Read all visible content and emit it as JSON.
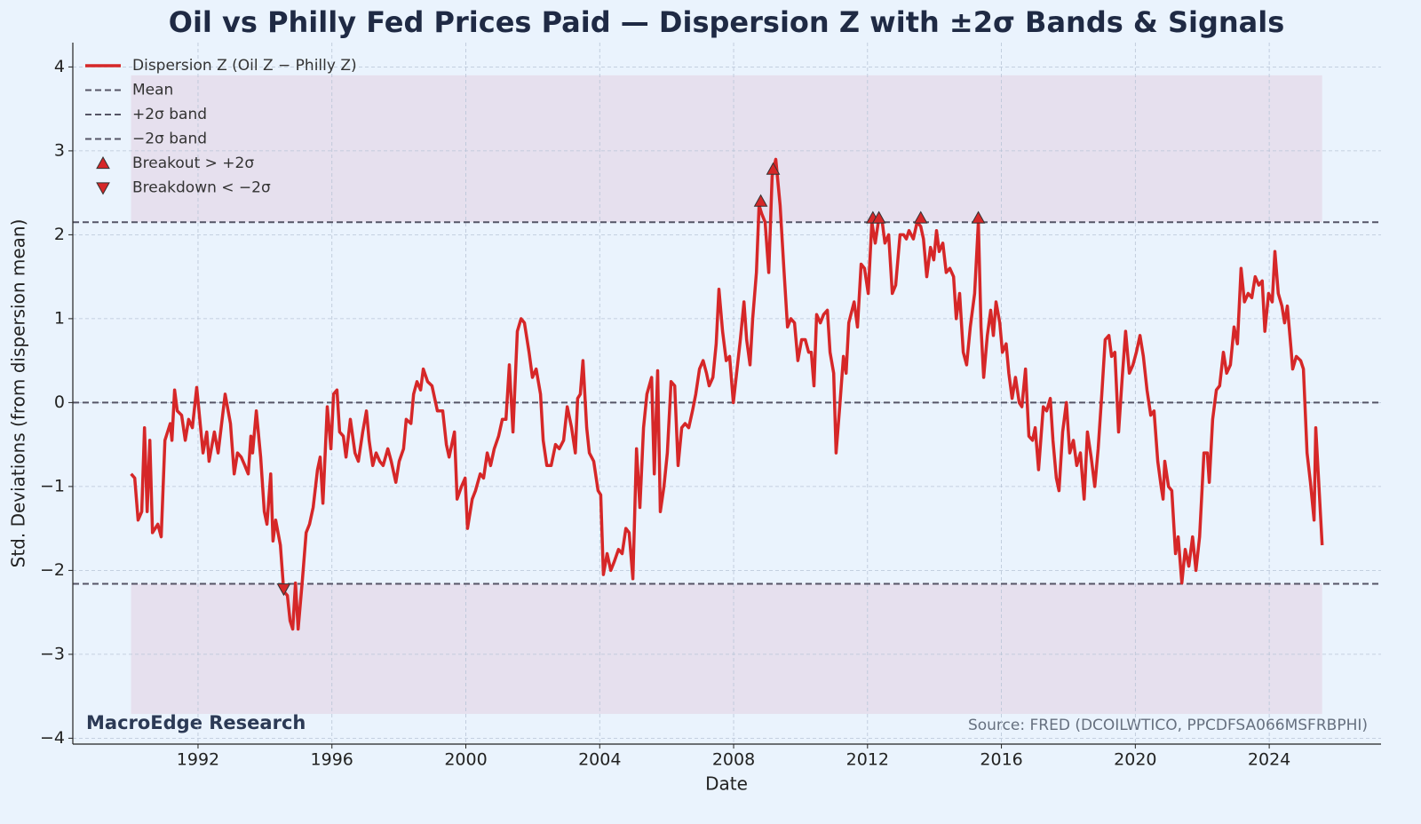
{
  "chart_data": {
    "type": "line",
    "title": "Oil vs Philly Fed Prices Paid — Dispersion Z with ±2σ Bands & Signals",
    "xlabel": "Date",
    "ylabel": "Std. Deviations (from dispersion mean)",
    "annotations": [
      "MacroEdge Research",
      "Source: FRED (DCOILWTICO, PPCDFSA066MSFRBPHI)"
    ],
    "xlim": [
      1988.26,
      2027.34
    ],
    "ylim": [
      -4.07,
      4.29
    ],
    "xticks": [
      1992,
      1996,
      2000,
      2004,
      2008,
      2012,
      2016,
      2020,
      2024
    ],
    "yticks": [
      {
        "value": -4,
        "label": "−4"
      },
      {
        "value": -3,
        "label": "−3"
      },
      {
        "value": -2,
        "label": "−2"
      },
      {
        "value": -1,
        "label": "−1"
      },
      0,
      1,
      2,
      3,
      4
    ],
    "grid": true,
    "legend": "upper left",
    "x": [
      1990.0,
      1990.11,
      1990.21,
      1990.32,
      1990.4,
      1990.48,
      1990.56,
      1990.64,
      1990.8,
      1990.9,
      1991.01,
      1991.17,
      1991.22,
      1991.3,
      1991.38,
      1991.51,
      1991.62,
      1991.72,
      1991.83,
      1991.96,
      1992.15,
      1992.26,
      1992.33,
      1992.49,
      1992.6,
      1992.81,
      1992.97,
      1993.08,
      1993.18,
      1993.29,
      1993.4,
      1993.5,
      1993.58,
      1993.63,
      1993.74,
      1993.87,
      1993.98,
      1994.06,
      1994.17,
      1994.24,
      1994.32,
      1994.46,
      1994.56,
      1994.67,
      1994.75,
      1994.83,
      1994.91,
      1994.99,
      1995.12,
      1995.23,
      1995.33,
      1995.44,
      1995.57,
      1995.65,
      1995.73,
      1995.86,
      1995.97,
      1996.05,
      1996.15,
      1996.23,
      1996.34,
      1996.42,
      1996.55,
      1996.69,
      1996.79,
      1996.92,
      1997.03,
      1997.11,
      1997.22,
      1997.32,
      1997.43,
      1997.53,
      1997.67,
      1997.77,
      1997.91,
      1998.01,
      1998.14,
      1998.22,
      1998.36,
      1998.44,
      1998.54,
      1998.65,
      1998.73,
      1998.86,
      1998.99,
      1999.15,
      1999.31,
      1999.42,
      1999.5,
      1999.66,
      1999.74,
      1999.87,
      1999.98,
      2000.05,
      2000.19,
      2000.29,
      2000.43,
      2000.53,
      2000.64,
      2000.74,
      2000.85,
      2000.98,
      2001.09,
      2001.2,
      2001.3,
      2001.41,
      2001.54,
      2001.65,
      2001.75,
      2001.89,
      2001.99,
      2002.1,
      2002.23,
      2002.31,
      2002.42,
      2002.55,
      2002.68,
      2002.79,
      2002.92,
      2003.03,
      2003.16,
      2003.27,
      2003.34,
      2003.42,
      2003.5,
      2003.61,
      2003.69,
      2003.82,
      2003.95,
      2004.03,
      2004.11,
      2004.22,
      2004.33,
      2004.43,
      2004.56,
      2004.67,
      2004.78,
      2004.88,
      2004.99,
      2005.1,
      2005.2,
      2005.31,
      2005.41,
      2005.55,
      2005.63,
      2005.73,
      2005.81,
      2005.92,
      2006.02,
      2006.13,
      2006.24,
      2006.34,
      2006.45,
      2006.55,
      2006.66,
      2006.77,
      2006.87,
      2006.98,
      2007.09,
      2007.19,
      2007.27,
      2007.38,
      2007.48,
      2007.56,
      2007.67,
      2007.78,
      2007.88,
      2007.99,
      2008.09,
      2008.2,
      2008.31,
      2008.39,
      2008.49,
      2008.57,
      2008.68,
      2008.76,
      2008.84,
      2008.94,
      2009.05,
      2009.15,
      2009.26,
      2009.39,
      2009.5,
      2009.61,
      2009.71,
      2009.82,
      2009.92,
      2010.03,
      2010.14,
      2010.24,
      2010.32,
      2010.4,
      2010.48,
      2010.59,
      2010.69,
      2010.8,
      2010.88,
      2010.99,
      2011.06,
      2011.17,
      2011.28,
      2011.36,
      2011.44,
      2011.6,
      2011.7,
      2011.81,
      2011.91,
      2012.02,
      2012.13,
      2012.23,
      2012.34,
      2012.44,
      2012.52,
      2012.63,
      2012.74,
      2012.84,
      2012.97,
      2013.08,
      2013.16,
      2013.24,
      2013.37,
      2013.48,
      2013.59,
      2013.67,
      2013.77,
      2013.88,
      2013.98,
      2014.06,
      2014.14,
      2014.25,
      2014.35,
      2014.46,
      2014.57,
      2014.65,
      2014.75,
      2014.86,
      2014.96,
      2015.07,
      2015.2,
      2015.31,
      2015.39,
      2015.47,
      2015.58,
      2015.68,
      2015.76,
      2015.84,
      2015.95,
      2016.03,
      2016.14,
      2016.22,
      2016.32,
      2016.42,
      2016.53,
      2016.61,
      2016.72,
      2016.82,
      2016.93,
      2017.01,
      2017.11,
      2017.25,
      2017.35,
      2017.46,
      2017.54,
      2017.64,
      2017.72,
      2017.83,
      2017.94,
      2018.04,
      2018.15,
      2018.25,
      2018.36,
      2018.47,
      2018.57,
      2018.68,
      2018.79,
      2018.89,
      2019.0,
      2019.1,
      2019.21,
      2019.29,
      2019.39,
      2019.5,
      2019.61,
      2019.71,
      2019.82,
      2019.93,
      2020.03,
      2020.14,
      2020.24,
      2020.35,
      2020.46,
      2020.56,
      2020.67,
      2020.77,
      2020.83,
      2020.88,
      2020.99,
      2021.09,
      2021.2,
      2021.28,
      2021.39,
      2021.49,
      2021.6,
      2021.71,
      2021.81,
      2021.92,
      2022.05,
      2022.15,
      2022.21,
      2022.31,
      2022.42,
      2022.52,
      2022.63,
      2022.73,
      2022.84,
      2022.95,
      2023.05,
      2023.16,
      2023.26,
      2023.37,
      2023.48,
      2023.58,
      2023.69,
      2023.79,
      2023.87,
      2023.98,
      2024.09,
      2024.17,
      2024.27,
      2024.38,
      2024.46,
      2024.54,
      2024.65,
      2024.7,
      2024.81,
      2024.94,
      2025.02,
      2025.13,
      2025.23,
      2025.34,
      2025.39,
      2025.58
    ],
    "series": [
      {
        "name": "Dispersion Z (Oil Z − Philly Z)",
        "color": "#d62728",
        "values": [
          -0.85,
          -0.9,
          -1.4,
          -1.3,
          -0.3,
          -1.3,
          -0.45,
          -1.55,
          -1.45,
          -1.6,
          -0.45,
          -0.25,
          -0.45,
          0.15,
          -0.1,
          -0.15,
          -0.45,
          -0.2,
          -0.3,
          0.18,
          -0.6,
          -0.35,
          -0.7,
          -0.35,
          -0.6,
          0.1,
          -0.25,
          -0.85,
          -0.6,
          -0.65,
          -0.75,
          -0.85,
          -0.4,
          -0.6,
          -0.1,
          -0.65,
          -1.3,
          -1.45,
          -0.85,
          -1.65,
          -1.4,
          -1.7,
          -2.25,
          -2.3,
          -2.6,
          -2.7,
          -2.15,
          -2.7,
          -2.1,
          -1.55,
          -1.45,
          -1.25,
          -0.8,
          -0.65,
          -1.2,
          -0.05,
          -0.55,
          0.1,
          0.15,
          -0.35,
          -0.4,
          -0.65,
          -0.2,
          -0.6,
          -0.7,
          -0.35,
          -0.1,
          -0.45,
          -0.75,
          -0.6,
          -0.7,
          -0.75,
          -0.55,
          -0.7,
          -0.95,
          -0.7,
          -0.55,
          -0.2,
          -0.25,
          0.1,
          0.25,
          0.15,
          0.4,
          0.25,
          0.2,
          -0.1,
          -0.1,
          -0.5,
          -0.65,
          -0.35,
          -1.15,
          -1.0,
          -0.9,
          -1.5,
          -1.15,
          -1.05,
          -0.85,
          -0.9,
          -0.6,
          -0.75,
          -0.55,
          -0.4,
          -0.2,
          -0.2,
          0.45,
          -0.35,
          0.85,
          1.0,
          0.95,
          0.6,
          0.3,
          0.4,
          0.1,
          -0.45,
          -0.75,
          -0.75,
          -0.5,
          -0.55,
          -0.45,
          -0.05,
          -0.3,
          -0.6,
          0.05,
          0.1,
          0.5,
          -0.3,
          -0.6,
          -0.7,
          -1.05,
          -1.1,
          -2.05,
          -1.8,
          -2.0,
          -1.9,
          -1.75,
          -1.8,
          -1.5,
          -1.55,
          -2.1,
          -0.55,
          -1.25,
          -0.3,
          0.1,
          0.3,
          -0.85,
          0.38,
          -1.3,
          -1.0,
          -0.6,
          0.25,
          0.2,
          -0.75,
          -0.3,
          -0.25,
          -0.3,
          -0.1,
          0.1,
          0.4,
          0.5,
          0.35,
          0.2,
          0.3,
          0.7,
          1.35,
          0.85,
          0.5,
          0.55,
          0.0,
          0.35,
          0.75,
          1.2,
          0.75,
          0.45,
          1.0,
          1.55,
          2.35,
          2.25,
          2.15,
          1.55,
          2.7,
          2.9,
          2.35,
          1.6,
          0.9,
          1.0,
          0.95,
          0.5,
          0.75,
          0.75,
          0.6,
          0.6,
          0.2,
          1.05,
          0.95,
          1.05,
          1.1,
          0.6,
          0.35,
          -0.6,
          -0.05,
          0.55,
          0.35,
          0.95,
          1.2,
          0.9,
          1.65,
          1.6,
          1.3,
          2.15,
          1.9,
          2.2,
          2.15,
          1.9,
          2.0,
          1.3,
          1.4,
          2.0,
          2.0,
          1.95,
          2.05,
          1.95,
          2.15,
          2.1,
          1.95,
          1.5,
          1.85,
          1.7,
          2.05,
          1.8,
          1.9,
          1.55,
          1.6,
          1.5,
          1.0,
          1.3,
          0.6,
          0.45,
          0.9,
          1.3,
          2.15,
          0.9,
          0.3,
          0.8,
          1.1,
          0.8,
          1.2,
          0.95,
          0.6,
          0.7,
          0.35,
          0.05,
          0.3,
          0.0,
          -0.05,
          0.4,
          -0.4,
          -0.45,
          -0.3,
          -0.8,
          -0.05,
          -0.1,
          0.05,
          -0.45,
          -0.9,
          -1.05,
          -0.35,
          0.0,
          -0.6,
          -0.45,
          -0.75,
          -0.6,
          -1.15,
          -0.35,
          -0.65,
          -1.0,
          -0.55,
          0.1,
          0.75,
          0.8,
          0.55,
          0.6,
          -0.35,
          0.3,
          0.85,
          0.35,
          0.45,
          0.6,
          0.8,
          0.55,
          0.15,
          -0.15,
          -0.1,
          -0.7,
          -1.0,
          -1.15,
          -0.7,
          -1.0,
          -1.05,
          -1.8,
          -1.6,
          -2.15,
          -1.75,
          -1.95,
          -1.6,
          -2.0,
          -1.6,
          -0.6,
          -0.6,
          -0.95,
          -0.2,
          0.15,
          0.2,
          0.6,
          0.35,
          0.45,
          0.9,
          0.7,
          1.6,
          1.2,
          1.3,
          1.25,
          1.5,
          1.4,
          1.45,
          0.85,
          1.3,
          1.2,
          1.8,
          1.3,
          1.15,
          0.95,
          1.15,
          0.65,
          0.4,
          0.55,
          0.5,
          0.4,
          -0.6,
          -0.95,
          -1.4,
          -0.3,
          -1.7
        ]
      }
    ],
    "reference_lines": [
      {
        "name": "Mean",
        "value": 0,
        "color": "#555566"
      },
      {
        "name": "+2σ band",
        "value": 2.15,
        "color": "#555566"
      },
      {
        "name": "−2σ band",
        "value": -2.16,
        "color": "#555566"
      }
    ],
    "shade": {
      "color": "#e6e0ee",
      "x": [
        1990.0,
        2025.58
      ],
      "upper": [
        2.15,
        3.9
      ],
      "lower": [
        -3.71,
        -2.16
      ]
    },
    "signals": [
      {
        "name": "Breakout > +2σ",
        "marker": "triangle-up",
        "color": "#d62728",
        "x": [
          2008.81,
          2009.18,
          2012.16,
          2012.34,
          2013.59,
          2015.31
        ],
        "values": [
          2.4,
          2.78,
          2.2,
          2.2,
          2.2,
          2.2
        ]
      },
      {
        "name": "Breakdown < −2σ",
        "marker": "triangle-down",
        "color": "#d62728",
        "x": [
          1994.56
        ],
        "values": [
          -2.22
        ]
      }
    ]
  }
}
